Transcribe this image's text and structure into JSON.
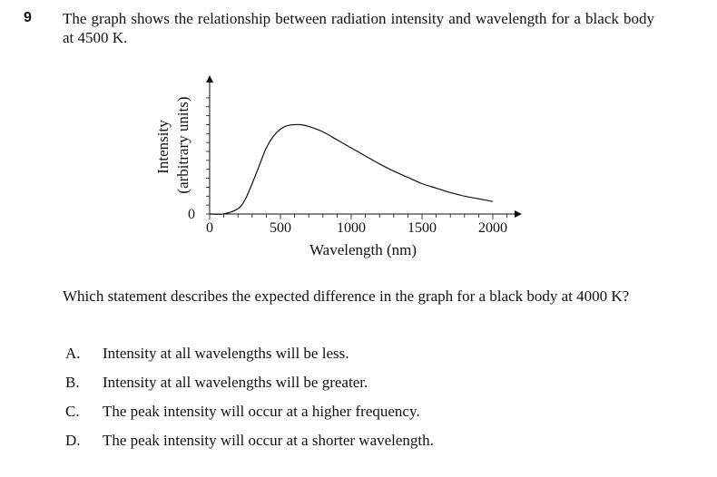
{
  "question": {
    "number": "9",
    "stem": "The graph shows the relationship between radiation intensity and wavelength for a black body at 4500 K.",
    "prompt": "Which statement describes the expected difference in the graph for a black body at 4000 K?"
  },
  "options": [
    {
      "letter": "A.",
      "text": "Intensity at all wavelengths will be less."
    },
    {
      "letter": "B.",
      "text": "Intensity at all wavelengths will be greater."
    },
    {
      "letter": "C.",
      "text": "The peak intensity will occur at a higher frequency."
    },
    {
      "letter": "D.",
      "text": "The peak intensity will occur at a shorter wavelength."
    }
  ],
  "chart_data": {
    "type": "line",
    "title": "",
    "xlabel": "Wavelength (nm)",
    "ylabel_line1": "Intensity",
    "ylabel_line2": "(arbitrary units)",
    "x_ticks": [
      "0",
      "500",
      "1000",
      "1500",
      "2000"
    ],
    "y_ticks": [
      "0"
    ],
    "xlim": [
      0,
      2000
    ],
    "ylim": [
      0,
      1.35
    ],
    "grid": false,
    "series": [
      {
        "x": [
          0,
          100,
          200,
          250,
          300,
          350,
          400,
          450,
          500,
          550,
          600,
          644,
          700,
          800,
          900,
          1000,
          1100,
          1200,
          1300,
          1400,
          1500,
          1600,
          1700,
          1800,
          1900,
          2000
        ],
        "y": [
          0,
          0.002,
          0.06,
          0.16,
          0.34,
          0.54,
          0.74,
          0.87,
          0.95,
          0.99,
          1.0,
          1.0,
          0.98,
          0.92,
          0.83,
          0.74,
          0.65,
          0.56,
          0.48,
          0.41,
          0.34,
          0.29,
          0.24,
          0.2,
          0.17,
          0.14
        ]
      }
    ]
  }
}
